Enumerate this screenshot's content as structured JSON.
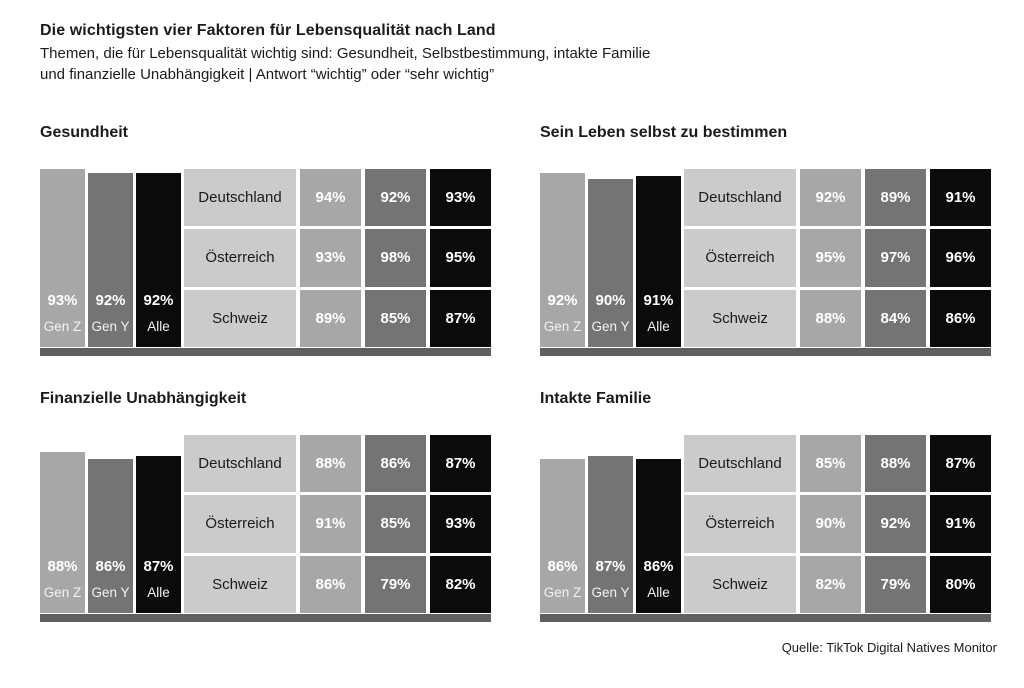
{
  "header": {
    "title": "Die wichtigsten vier Faktoren für Lebensqualität nach Land",
    "subtitle_lines": [
      "Themen, die für Lebensqualität wichtig sind: Gesundheit, Selbstbestimmung, intakte Familie",
      "und finanzielle Unabhängigkeit | Antwort “wichtig” oder “sehr wichtig”"
    ]
  },
  "source_note": "Quelle: TikTok Digital Natives Monitor",
  "colors": {
    "gen_z": "#a7a7a7",
    "gen_y": "#747474",
    "alle": "#0b0b0b",
    "country_cell": "#cbcbcb",
    "baseline_strip": "#5f5f5f",
    "background": "#ffffff",
    "text": "#1b1b1b",
    "value_text": "#ffffff"
  },
  "chart_data": [
    {
      "type": "bar",
      "title": "Gesundheit",
      "categories": [
        "Gen Z",
        "Gen Y",
        "Alle"
      ],
      "values": [
        93,
        92,
        92
      ],
      "value_labels": [
        "93%",
        "92%",
        "92%"
      ],
      "ylim": [
        0,
        100
      ],
      "table": {
        "rows": [
          "Deutschland",
          "Österreich",
          "Schweiz"
        ],
        "columns": [
          "Gen Z",
          "Gen Y",
          "Alle"
        ],
        "values": [
          [
            94,
            92,
            93
          ],
          [
            93,
            98,
            95
          ],
          [
            89,
            85,
            87
          ]
        ],
        "value_labels": [
          [
            "94%",
            "92%",
            "93%"
          ],
          [
            "93%",
            "98%",
            "95%"
          ],
          [
            "89%",
            "85%",
            "87%"
          ]
        ]
      }
    },
    {
      "type": "bar",
      "title": "Sein Leben selbst zu bestimmen",
      "categories": [
        "Gen Z",
        "Gen Y",
        "Alle"
      ],
      "values": [
        92,
        90,
        91
      ],
      "value_labels": [
        "92%",
        "90%",
        "91%"
      ],
      "ylim": [
        0,
        100
      ],
      "table": {
        "rows": [
          "Deutschland",
          "Österreich",
          "Schweiz"
        ],
        "columns": [
          "Gen Z",
          "Gen Y",
          "Alle"
        ],
        "values": [
          [
            92,
            89,
            91
          ],
          [
            95,
            97,
            96
          ],
          [
            88,
            84,
            86
          ]
        ],
        "value_labels": [
          [
            "92%",
            "89%",
            "91%"
          ],
          [
            "95%",
            "97%",
            "96%"
          ],
          [
            "88%",
            "84%",
            "86%"
          ]
        ]
      }
    },
    {
      "type": "bar",
      "title": "Finanzielle Unabhängigkeit",
      "categories": [
        "Gen Z",
        "Gen Y",
        "Alle"
      ],
      "values": [
        88,
        86,
        87
      ],
      "value_labels": [
        "88%",
        "86%",
        "87%"
      ],
      "ylim": [
        0,
        100
      ],
      "table": {
        "rows": [
          "Deutschland",
          "Österreich",
          "Schweiz"
        ],
        "columns": [
          "Gen Z",
          "Gen Y",
          "Alle"
        ],
        "values": [
          [
            88,
            86,
            87
          ],
          [
            91,
            85,
            93
          ],
          [
            86,
            79,
            82
          ]
        ],
        "value_labels": [
          [
            "88%",
            "86%",
            "87%"
          ],
          [
            "91%",
            "85%",
            "93%"
          ],
          [
            "86%",
            "79%",
            "82%"
          ]
        ]
      }
    },
    {
      "type": "bar",
      "title": "Intakte Familie",
      "categories": [
        "Gen Z",
        "Gen Y",
        "Alle"
      ],
      "values": [
        86,
        87,
        86
      ],
      "value_labels": [
        "86%",
        "87%",
        "86%"
      ],
      "ylim": [
        0,
        100
      ],
      "table": {
        "rows": [
          "Deutschland",
          "Österreich",
          "Schweiz"
        ],
        "columns": [
          "Gen Z",
          "Gen Y",
          "Alle"
        ],
        "values": [
          [
            85,
            88,
            87
          ],
          [
            90,
            92,
            91
          ],
          [
            82,
            79,
            80
          ]
        ],
        "value_labels": [
          [
            "85%",
            "88%",
            "87%"
          ],
          [
            "90%",
            "92%",
            "91%"
          ],
          [
            "82%",
            "79%",
            "80%"
          ]
        ]
      }
    }
  ]
}
